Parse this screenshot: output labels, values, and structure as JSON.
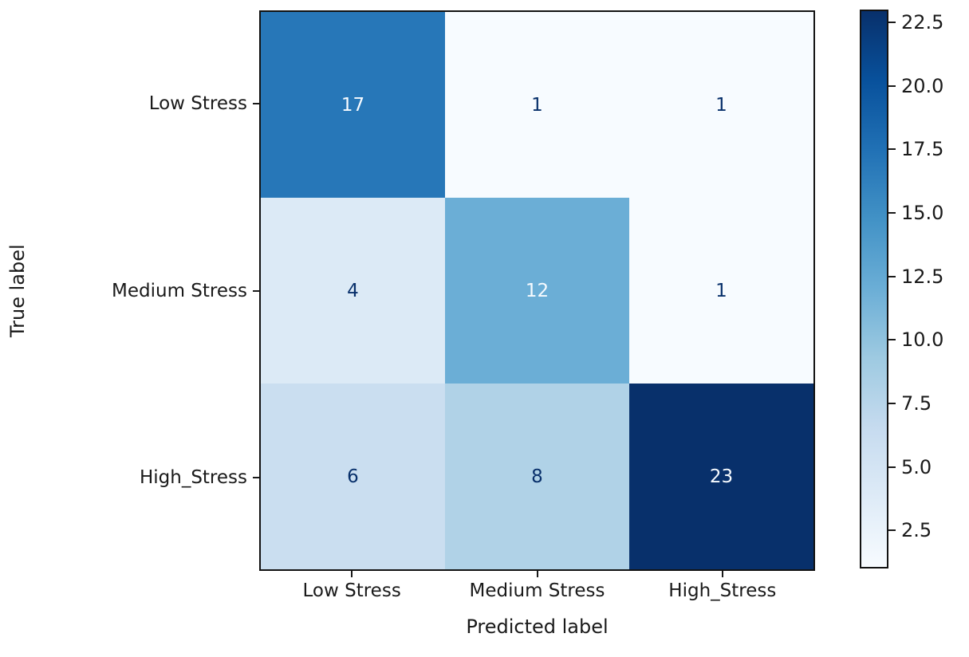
{
  "chart_data": {
    "type": "heatmap",
    "title": "",
    "xlabel": "Predicted label",
    "ylabel": "True label",
    "x_categories": [
      "Low Stress",
      "Medium Stress",
      "High_Stress"
    ],
    "y_categories": [
      "Low Stress",
      "Medium Stress",
      "High_Stress"
    ],
    "matrix": [
      [
        17,
        1,
        1
      ],
      [
        4,
        12,
        1
      ],
      [
        6,
        8,
        23
      ]
    ],
    "vmin": 1,
    "vmax": 23,
    "colormap": "Blues",
    "cell_colors": [
      [
        "#2777b8",
        "#f7fbff",
        "#f7fbff"
      ],
      [
        "#dceaf6",
        "#6baed6",
        "#f7fbff"
      ],
      [
        "#cadef0",
        "#b0d2e7",
        "#08306b"
      ]
    ],
    "cell_text_colors": [
      [
        "#f7fbff",
        "#08306b",
        "#08306b"
      ],
      [
        "#08306b",
        "#f7fbff",
        "#08306b"
      ],
      [
        "#08306b",
        "#08306b",
        "#f7fbff"
      ]
    ],
    "grid": false,
    "legend_position": "none",
    "colorbar": {
      "position": "right",
      "tick_labels": [
        "22.5",
        "20.0",
        "17.5",
        "15.0",
        "12.5",
        "10.0",
        "7.5",
        "5.0",
        "2.5"
      ],
      "tick_values": [
        22.5,
        20.0,
        17.5,
        15.0,
        12.5,
        10.0,
        7.5,
        5.0,
        2.5
      ],
      "gradient_min_color": "#f7fbff",
      "gradient_max_color": "#08306b"
    },
    "axis_color": "#1a1a1a"
  }
}
